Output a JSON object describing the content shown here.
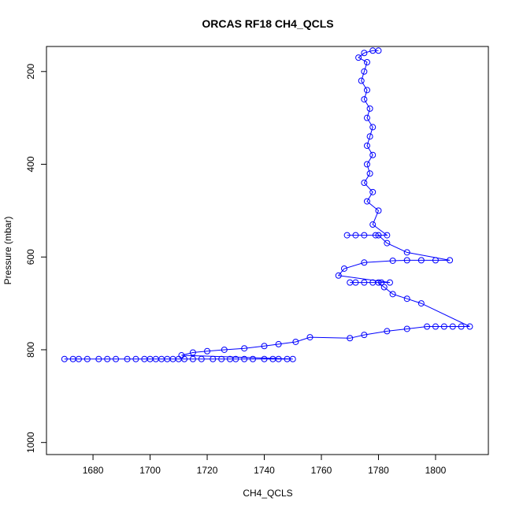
{
  "chart_data": {
    "type": "scatter",
    "title": "ORCAS RF18 CH4_QCLS",
    "x_label": "CH4_QCLS",
    "y_label": "Pressure (mbar)",
    "series": [
      {
        "color": "#0000ff",
        "x": [
          1670,
          1673,
          1675,
          1678,
          1682,
          1685,
          1688,
          1692,
          1695,
          1698,
          1700,
          1702,
          1704,
          1706,
          1708,
          1710,
          1712,
          1715,
          1718,
          1722,
          1725,
          1728,
          1730,
          1733,
          1736,
          1740,
          1743,
          1745,
          1748,
          1750,
          1711,
          1715,
          1720,
          1726,
          1733,
          1740,
          1745,
          1751,
          1756,
          1770,
          1775,
          1783,
          1790,
          1797,
          1800,
          1803,
          1806,
          1809,
          1812,
          1795,
          1790,
          1785,
          1782,
          1780,
          1770,
          1772,
          1775,
          1778,
          1781,
          1784,
          1766,
          1768,
          1775,
          1785,
          1790,
          1795,
          1800,
          1805,
          1790,
          1783,
          1780,
          1769,
          1772,
          1775,
          1779,
          1783,
          1778,
          1780,
          1776,
          1778,
          1775,
          1777,
          1776,
          1778,
          1776,
          1777,
          1778,
          1776,
          1777,
          1775,
          1776,
          1774,
          1775,
          1776,
          1773,
          1775,
          1778,
          1780
        ],
        "values": [
          820,
          820,
          820,
          820,
          820,
          820,
          820,
          820,
          820,
          820,
          820,
          820,
          820,
          820,
          820,
          820,
          820,
          820,
          820,
          820,
          820,
          820,
          820,
          820,
          820,
          820,
          820,
          820,
          820,
          820,
          812,
          806,
          803,
          800,
          797,
          792,
          788,
          783,
          773,
          775,
          768,
          760,
          755,
          750,
          750,
          750,
          750,
          750,
          750,
          700,
          690,
          680,
          665,
          655,
          655,
          655,
          655,
          655,
          655,
          655,
          640,
          625,
          612,
          608,
          607,
          607,
          607,
          607,
          590,
          570,
          553,
          553,
          553,
          553,
          553,
          553,
          530,
          500,
          480,
          460,
          440,
          420,
          400,
          380,
          360,
          340,
          320,
          300,
          280,
          260,
          240,
          220,
          200,
          180,
          170,
          160,
          155,
          155
        ]
      }
    ],
    "xlim": [
      1663.7,
      1818.5
    ],
    "xticks": [
      1680,
      1700,
      1720,
      1740,
      1760,
      1780,
      1800
    ],
    "ylim": [
      1026,
      146
    ],
    "yticks": [
      200,
      400,
      600,
      800,
      1000
    ]
  }
}
